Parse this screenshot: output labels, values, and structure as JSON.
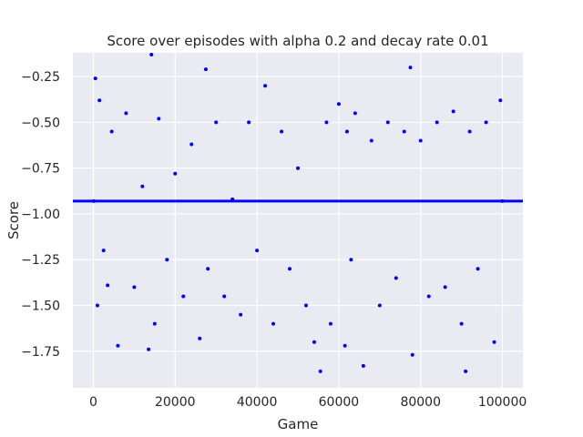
{
  "chart_data": {
    "type": "scatter",
    "title": "Score over episodes with alpha 0.2 and decay rate 0.01",
    "xlabel": "Game",
    "ylabel": "Score",
    "xlim": [
      -5000,
      105000
    ],
    "ylim": [
      -1.95,
      -0.12
    ],
    "x_ticks": [
      0,
      20000,
      40000,
      60000,
      80000,
      100000
    ],
    "x_tick_labels": [
      "0",
      "20000",
      "40000",
      "60000",
      "80000",
      "100000"
    ],
    "y_ticks": [
      -0.25,
      -0.5,
      -0.75,
      -1.0,
      -1.25,
      -1.5,
      -1.75
    ],
    "y_tick_labels": [
      "−0.25",
      "−0.50",
      "−0.75",
      "−1.00",
      "−1.25",
      "−1.50",
      "−1.75"
    ],
    "grid": true,
    "background": "#eaeaf2",
    "series": [
      {
        "color": "#0000ff",
        "marker": "dot",
        "x": [
          100,
          500,
          1000,
          1500,
          2500,
          3500,
          4500,
          6000,
          8000,
          10000,
          12000,
          13500,
          14200,
          15000,
          16000,
          18000,
          20000,
          22000,
          24000,
          26000,
          27500,
          28000,
          30000,
          32000,
          34000,
          36000,
          38000,
          40000,
          42000,
          44000,
          46000,
          48000,
          50000,
          52000,
          54000,
          55500,
          57000,
          58000,
          60000,
          61500,
          62000,
          63000,
          64000,
          66000,
          68000,
          70000,
          72000,
          74000,
          76000,
          77500,
          78000,
          80000,
          82000,
          84000,
          86000,
          88000,
          90000,
          91000,
          92000,
          94000,
          96000,
          98000,
          99500,
          100000
        ],
        "y": [
          -0.93,
          -0.26,
          -1.5,
          -0.38,
          -1.2,
          -1.39,
          -0.55,
          -1.72,
          -0.45,
          -1.4,
          -0.85,
          -1.74,
          -0.13,
          -1.6,
          -0.48,
          -1.25,
          -0.78,
          -1.45,
          -0.62,
          -1.68,
          -0.21,
          -1.3,
          -0.5,
          -1.45,
          -0.92,
          -1.55,
          -0.5,
          -1.2,
          -0.3,
          -1.6,
          -0.55,
          -1.3,
          -0.75,
          -1.5,
          -1.7,
          -1.86,
          -0.5,
          -1.6,
          -0.4,
          -1.72,
          -0.55,
          -1.25,
          -0.45,
          -1.83,
          -0.6,
          -1.5,
          -0.5,
          -1.35,
          -0.55,
          -0.2,
          -1.77,
          -0.6,
          -1.45,
          -0.5,
          -1.4,
          -0.44,
          -1.6,
          -1.86,
          -0.55,
          -1.3,
          -0.5,
          -1.7,
          -0.38,
          -0.93
        ]
      }
    ],
    "trend_line": {
      "y": -0.93,
      "color": "#0000ff"
    }
  }
}
